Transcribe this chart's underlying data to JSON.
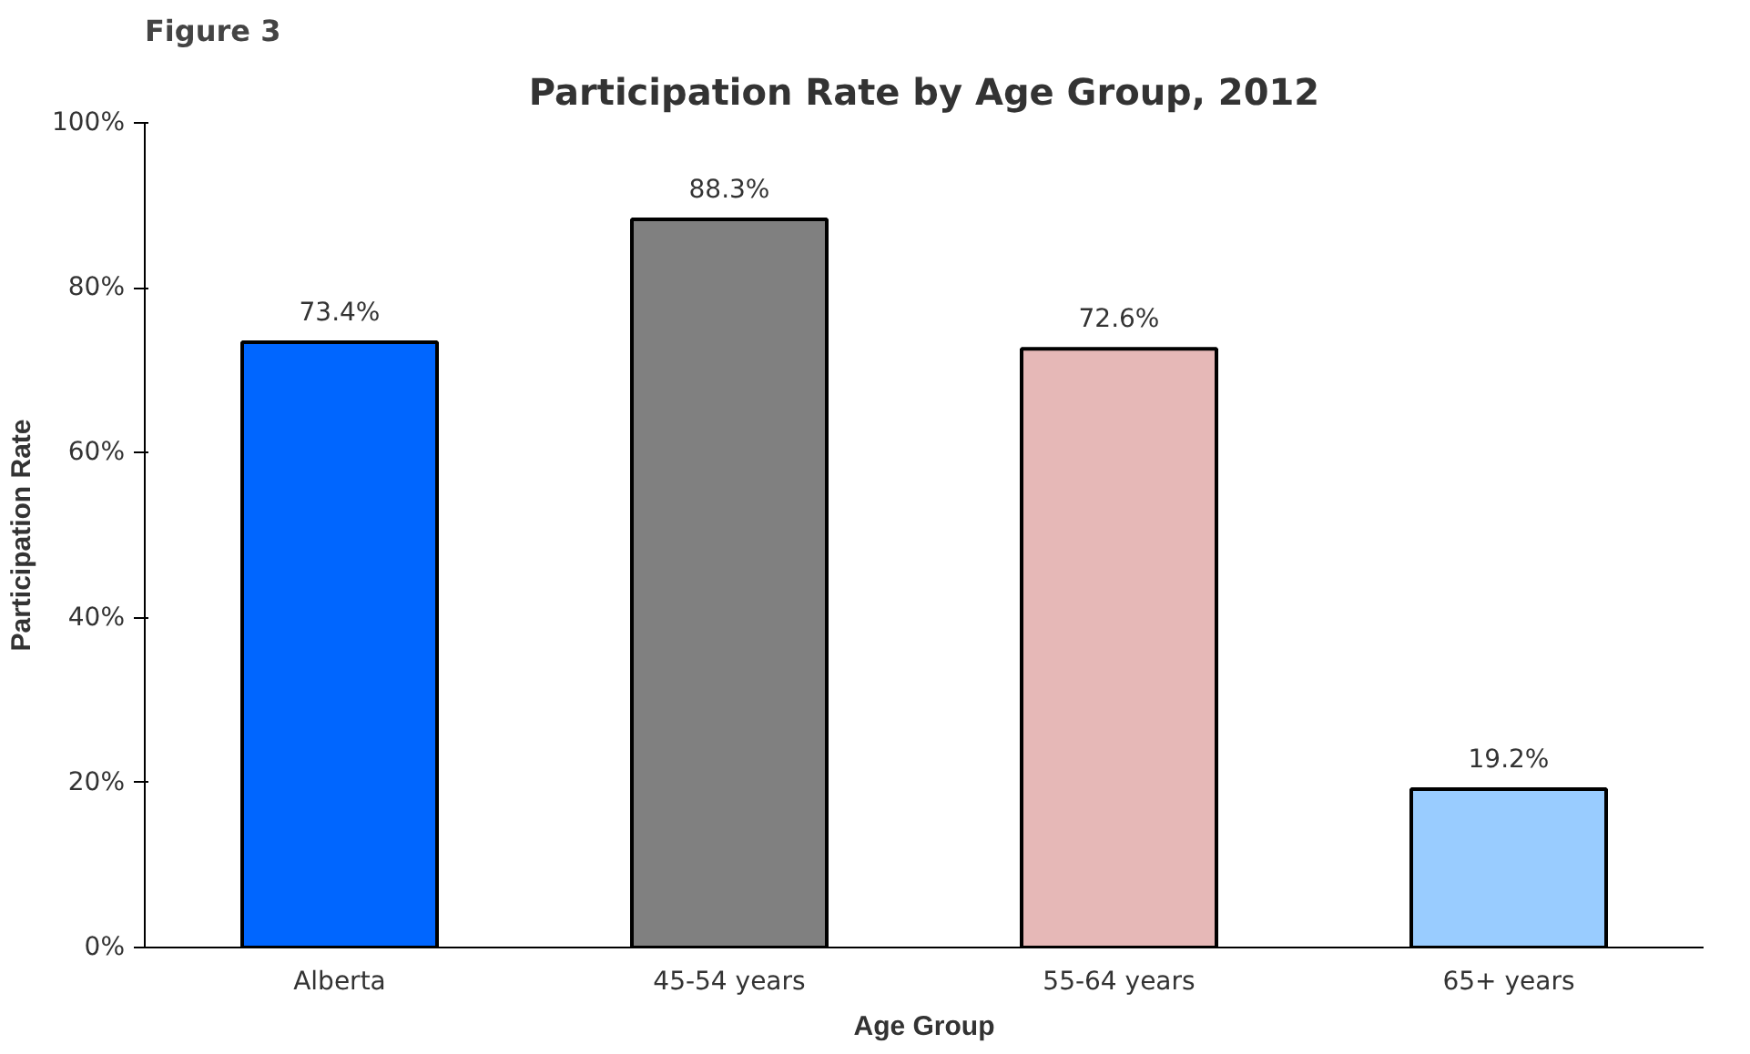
{
  "chart_data": {
    "type": "bar",
    "title": "Participation Rate by Age Group, 2012",
    "xlabel": "Age Group",
    "ylabel": "Participation Rate",
    "annotations": [
      "Figure 3"
    ],
    "categories": [
      "Alberta",
      "45-54 years",
      "55-64 years",
      "65+ years"
    ],
    "values": [
      73.4,
      88.3,
      72.6,
      19.2
    ],
    "colors": [
      "#0066ff",
      "#808080",
      "#e6b8b7",
      "#99ccff"
    ],
    "value_labels": [
      "73.4%",
      "88.3%",
      "72.6%",
      "19.2%"
    ],
    "ylim": [
      0,
      100
    ],
    "yticks": [
      {
        "value": 0,
        "label": "0%"
      },
      {
        "value": 20,
        "label": "20%"
      },
      {
        "value": 40,
        "label": "40%"
      },
      {
        "value": 60,
        "label": "60%"
      },
      {
        "value": 80,
        "label": "80%"
      },
      {
        "value": 100,
        "label": "100%"
      }
    ],
    "grid": false
  }
}
